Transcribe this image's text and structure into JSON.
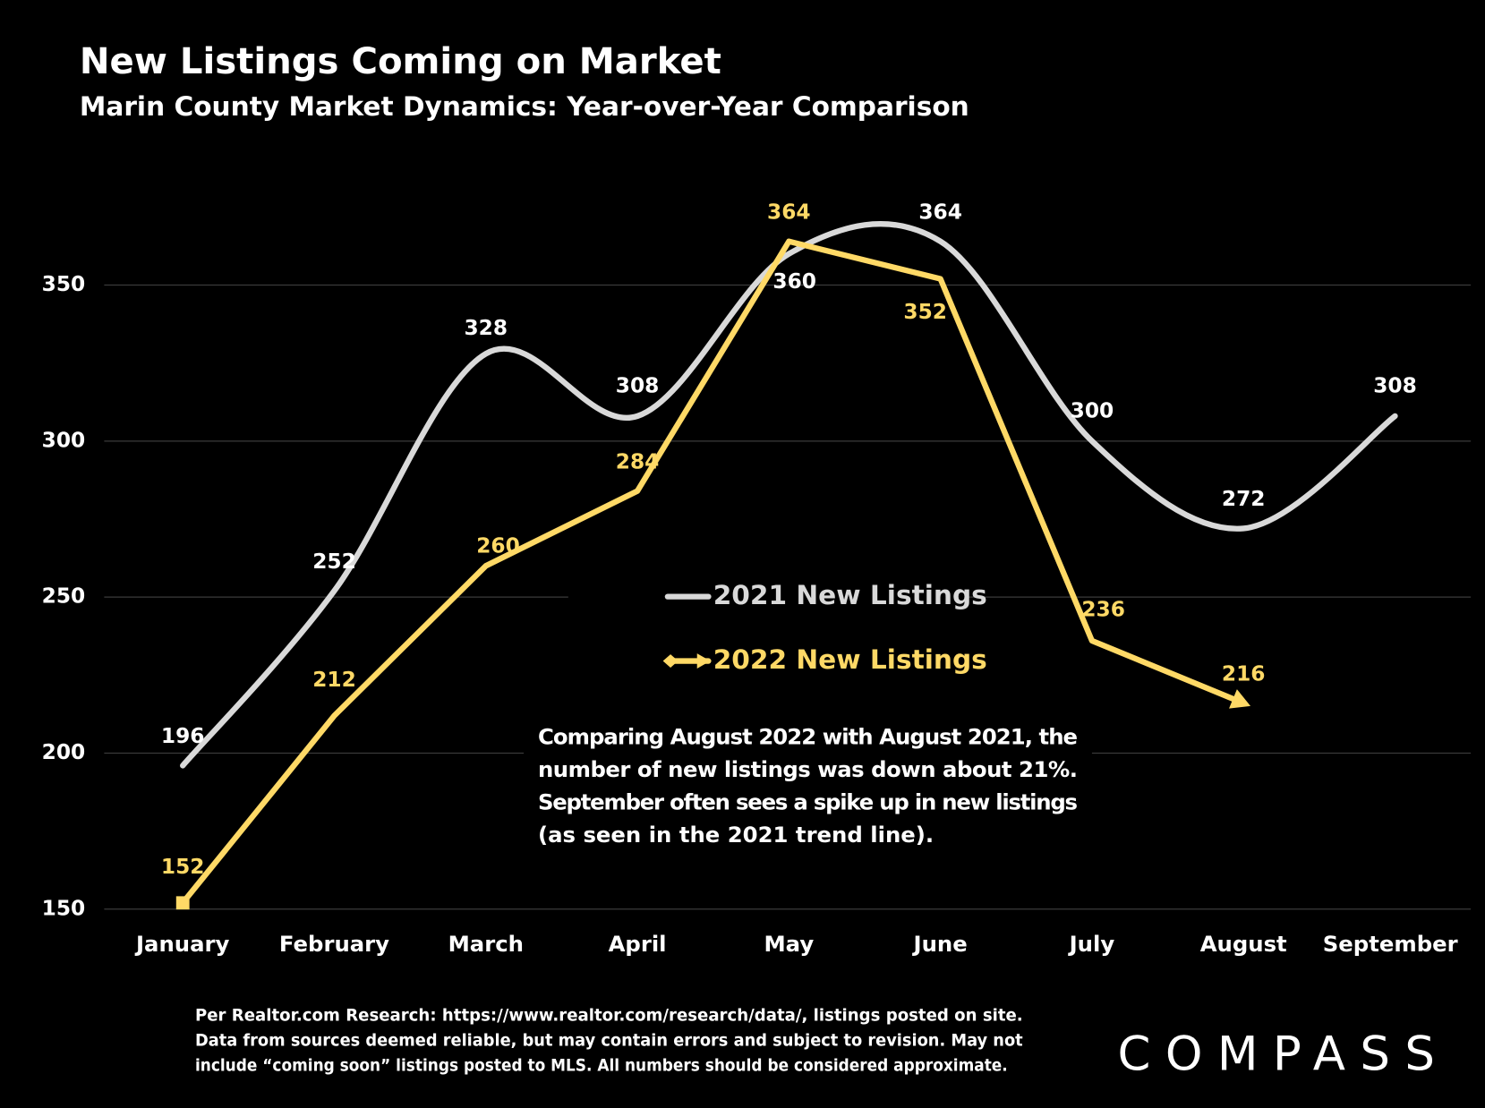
{
  "chart_data": {
    "type": "line",
    "title": "New Listings Coming on Market",
    "subtitle": "Marin County Market Dynamics: Year-over-Year Comparison",
    "categories": [
      "January",
      "February",
      "March",
      "April",
      "May",
      "June",
      "July",
      "August",
      "September"
    ],
    "series": [
      {
        "name": "2021 New Listings",
        "color": "#d9d9d9",
        "smooth": true,
        "values": [
          196,
          252,
          328,
          308,
          360,
          364,
          300,
          272,
          308
        ]
      },
      {
        "name": "2022 New Listings",
        "color": "#ffd966",
        "smooth": false,
        "values": [
          152,
          212,
          260,
          284,
          364,
          352,
          236,
          216,
          null
        ]
      }
    ],
    "ylim": [
      150,
      390
    ],
    "yticks": [
      150,
      200,
      250,
      300,
      350
    ],
    "grid": true,
    "annotation": [
      "Comparing August 2022 with August 2021, the",
      "number of new listings was down about 21%.",
      "September often sees a spike up in new listings",
      "(as seen in the 2021 trend line)."
    ],
    "footnote": [
      "Per Realtor.com Research:  https://www.realtor.com/research/data/, listings posted on site.",
      "Data from sources deemed reliable, but may contain errors and subject to revision. May not",
      "include “coming soon” listings posted to MLS. All numbers should be considered approximate."
    ],
    "logo": "COMPASS"
  }
}
